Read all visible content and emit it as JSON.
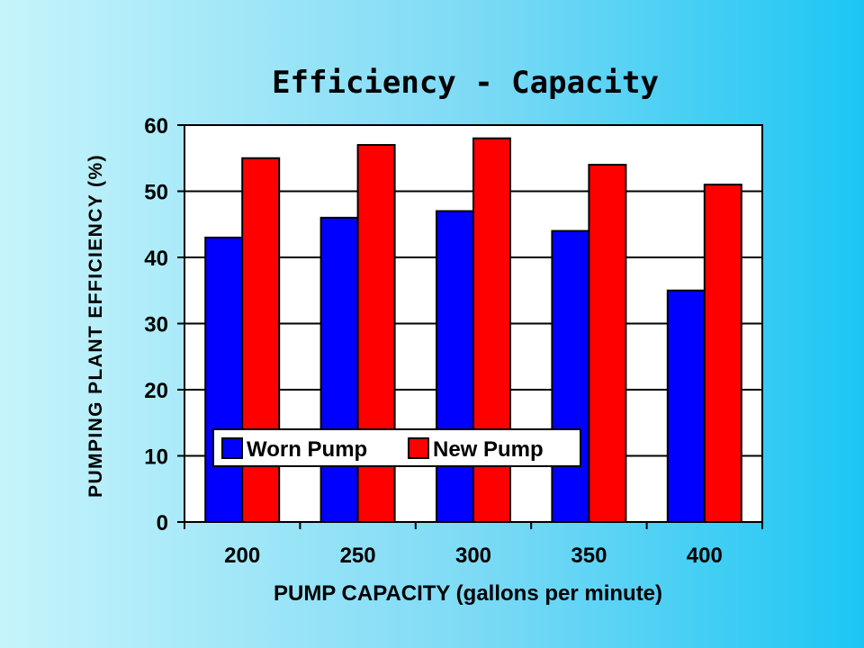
{
  "chart_data": {
    "type": "bar",
    "title": "Efficiency - Capacity",
    "xlabel": "PUMP CAPACITY (gallons per minute)",
    "ylabel": "PUMPING PLANT EFFICIENCY (%)",
    "categories": [
      "200",
      "250",
      "300",
      "350",
      "400"
    ],
    "series": [
      {
        "name": "Worn Pump",
        "values": [
          43,
          46,
          47,
          44,
          35
        ],
        "color": "#0000ff"
      },
      {
        "name": "New Pump",
        "values": [
          55,
          57,
          58,
          54,
          51
        ],
        "color": "#ff0000"
      }
    ],
    "ylim": [
      0,
      60
    ],
    "yticks": [
      0,
      10,
      20,
      30,
      40,
      50,
      60
    ],
    "grid": true,
    "legend_position": "bottom-left",
    "plot_background": "#ffffff"
  }
}
